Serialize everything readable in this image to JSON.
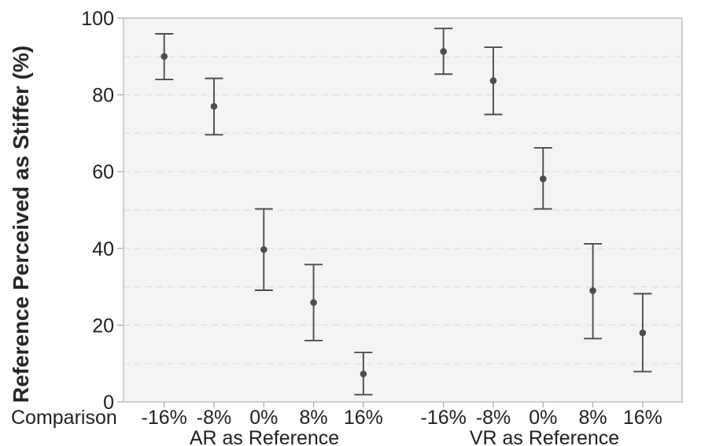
{
  "figure": {
    "background_color": "#ffffff",
    "plot_background_color": "#f4f4f2",
    "border_color": "#b3b3b3",
    "axis_color": "#a6a6a6",
    "gridline_color": "#dedede",
    "data_color": "#4d4d4d",
    "text_color": "#212121"
  },
  "chart_data": {
    "type": "scatter",
    "marker": "circle",
    "error_bars": true,
    "title": "",
    "ylabel": "Reference Perceived as Stiffer (%)",
    "xlabel": "Comparison",
    "ylim": [
      0,
      100
    ],
    "yticks": [
      0,
      20,
      40,
      60,
      80,
      100
    ],
    "gridline_values": [
      10,
      20,
      30,
      40,
      50,
      60,
      70,
      80,
      90
    ],
    "gridline_style": "dashed",
    "legend": "none",
    "categories": [
      "-16%",
      "-8%",
      "0%",
      "8%",
      "16%"
    ],
    "groups": [
      {
        "label": "AR as Reference",
        "points": [
          {
            "category": "-16%",
            "mean": 90.0,
            "ci_low": 84.0,
            "ci_high": 95.9
          },
          {
            "category": "-8%",
            "mean": 77.0,
            "ci_low": 69.6,
            "ci_high": 84.3
          },
          {
            "category": "0%",
            "mean": 39.7,
            "ci_low": 29.1,
            "ci_high": 50.3
          },
          {
            "category": "8%",
            "mean": 25.9,
            "ci_low": 16.0,
            "ci_high": 35.8
          },
          {
            "category": "16%",
            "mean": 7.3,
            "ci_low": 1.9,
            "ci_high": 12.9
          }
        ]
      },
      {
        "label": "VR as Reference",
        "points": [
          {
            "category": "-16%",
            "mean": 91.3,
            "ci_low": 85.4,
            "ci_high": 97.3
          },
          {
            "category": "-8%",
            "mean": 83.7,
            "ci_low": 74.9,
            "ci_high": 92.4
          },
          {
            "category": "0%",
            "mean": 58.1,
            "ci_low": 50.3,
            "ci_high": 66.2
          },
          {
            "category": "8%",
            "mean": 29.0,
            "ci_low": 16.5,
            "ci_high": 41.2
          },
          {
            "category": "16%",
            "mean": 18.0,
            "ci_low": 7.9,
            "ci_high": 28.2
          }
        ]
      }
    ]
  }
}
